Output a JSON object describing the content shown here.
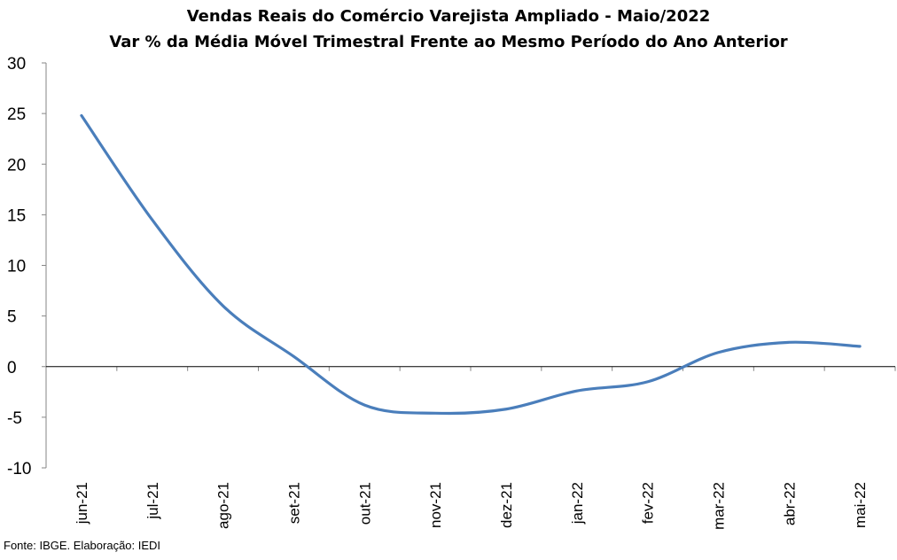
{
  "chart_data": {
    "type": "line",
    "title": "Vendas Reais do Comércio Varejista Ampliado - Maio/2022",
    "subtitle": "Var % da Média Móvel Trimestral Frente ao Mesmo Período do Ano Anterior",
    "categories": [
      "jun-21",
      "jul-21",
      "ago-21",
      "set-21",
      "out-21",
      "nov-21",
      "dez-21",
      "jan-22",
      "fev-22",
      "mar-22",
      "abr-22",
      "mai-22"
    ],
    "series": [
      {
        "values": [
          24.8,
          14.5,
          6.0,
          1.0,
          -3.8,
          -4.6,
          -4.2,
          -2.4,
          -1.5,
          1.4,
          2.4,
          2.0
        ]
      }
    ],
    "ylim": [
      -10,
      30
    ],
    "yticks": [
      30,
      25,
      20,
      15,
      10,
      5,
      0,
      -5,
      -10
    ],
    "grid": false,
    "legend": "none",
    "line_color": "#4a7ebb",
    "zero_line_color": "#000000"
  },
  "source": "Fonte: IBGE. Elaboração: IEDI"
}
